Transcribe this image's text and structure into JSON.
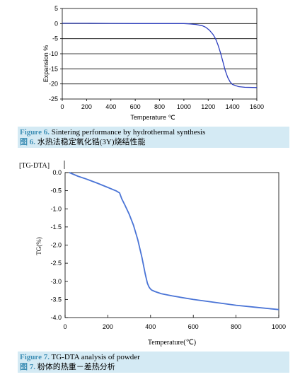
{
  "colors": {
    "curve": "#2d3fbf",
    "curve2": "#4a74d6",
    "caption_bg": "#d4eaf4",
    "caption_label": "#3f8fb5"
  },
  "figures": {
    "fig6": {
      "caption_en_label": "Figure 6.",
      "caption_en_text": " Sintering performance by hydrothermal synthesis",
      "caption_cn_label": "图 6.",
      "caption_cn_text": " 水热法稳定氧化锆(3Y)烧结性能"
    },
    "fig7": {
      "header": "[TG-DTA]",
      "caption_en_label": "Figure 7.",
      "caption_en_text": " TG-DTA analysis of powder",
      "caption_cn_label": "图 7.",
      "caption_cn_text": " 粉体的热重－差热分析"
    }
  },
  "chart_data": [
    {
      "type": "line",
      "xlabel": "Temperature ℃",
      "ylabel": "Expansion %",
      "xlim": [
        0,
        1600
      ],
      "ylim": [
        -25,
        5
      ],
      "xticks": [
        0,
        200,
        400,
        600,
        800,
        1000,
        1200,
        1400,
        1600
      ],
      "yticks": [
        5,
        0,
        -5,
        -10,
        -15,
        -20,
        -25
      ],
      "hgrid": [
        0,
        -5,
        -10,
        -15,
        -20
      ],
      "series": [
        {
          "x": [
            0,
            200,
            400,
            600,
            800,
            900,
            1000,
            1050,
            1100,
            1150,
            1180,
            1210,
            1240,
            1260,
            1280,
            1300,
            1320,
            1340,
            1360,
            1380,
            1400,
            1450,
            1500,
            1600
          ],
          "y": [
            0.1,
            0.1,
            0.05,
            0,
            0,
            0,
            0,
            -0.1,
            -0.3,
            -0.7,
            -1.2,
            -2.2,
            -3.6,
            -5,
            -7,
            -9.5,
            -12.5,
            -15.5,
            -17.8,
            -19.3,
            -20.2,
            -20.9,
            -21.1,
            -21.2
          ]
        }
      ]
    },
    {
      "type": "line",
      "xlabel": "Temperature(℃)",
      "ylabel": "TG(%)",
      "xlim": [
        0,
        1000
      ],
      "ylim": [
        -4.0,
        0.0
      ],
      "xticks": [
        0,
        200,
        400,
        600,
        800,
        1000
      ],
      "yticks": [
        "0.0",
        "-0.5",
        "-1.0",
        "-1.5",
        "-2.0",
        "-2.5",
        "-3.0",
        "-3.5",
        "-4.0"
      ],
      "series": [
        {
          "x": [
            20,
            60,
            100,
            150,
            200,
            240,
            255,
            265,
            280,
            300,
            320,
            340,
            360,
            375,
            385,
            392,
            398,
            405,
            420,
            450,
            500,
            600,
            700,
            800,
            900,
            1000
          ],
          "y": [
            0.0,
            -0.1,
            -0.18,
            -0.29,
            -0.41,
            -0.51,
            -0.56,
            -0.72,
            -0.9,
            -1.15,
            -1.45,
            -1.85,
            -2.35,
            -2.8,
            -3.05,
            -3.15,
            -3.2,
            -3.24,
            -3.28,
            -3.34,
            -3.4,
            -3.5,
            -3.58,
            -3.66,
            -3.72,
            -3.78
          ]
        }
      ]
    }
  ]
}
